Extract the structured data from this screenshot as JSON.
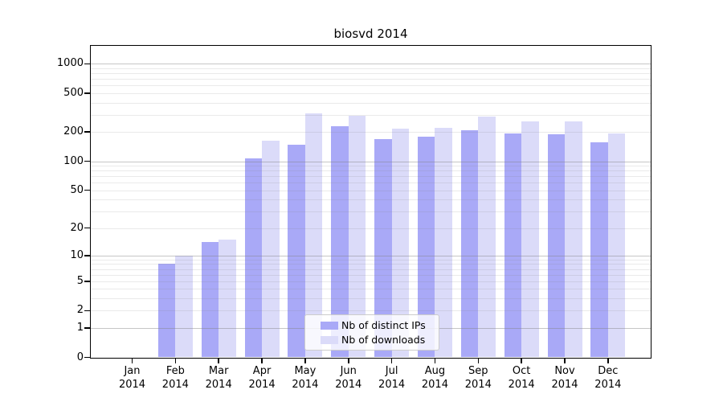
{
  "chart_data": {
    "type": "bar",
    "title": "biosvd 2014",
    "months": [
      "Jan",
      "Feb",
      "Mar",
      "Apr",
      "May",
      "Jun",
      "Jul",
      "Aug",
      "Sep",
      "Oct",
      "Nov",
      "Dec"
    ],
    "year": "2014",
    "series": [
      {
        "name": "Nb of distinct IPs",
        "color": "#a9a9f7",
        "values": [
          0,
          8,
          14,
          107,
          147,
          229,
          168,
          180,
          207,
          192,
          189,
          158
        ]
      },
      {
        "name": "Nb of downloads",
        "color": "#dbdbf9",
        "values": [
          0,
          10,
          15,
          163,
          310,
          294,
          217,
          221,
          289,
          259,
          256,
          194
        ]
      }
    ],
    "y_ticks": [
      0,
      1,
      2,
      5,
      10,
      20,
      50,
      100,
      200,
      500,
      1000
    ],
    "y_scale": "log10(1+value)",
    "ylim": [
      0,
      1500
    ],
    "grid": {
      "major_decades": [
        1,
        10,
        100,
        1000
      ],
      "minor_multiples": [
        2,
        3,
        4,
        5,
        6,
        7,
        8,
        9
      ]
    },
    "legend": {
      "position": "lower center"
    }
  }
}
